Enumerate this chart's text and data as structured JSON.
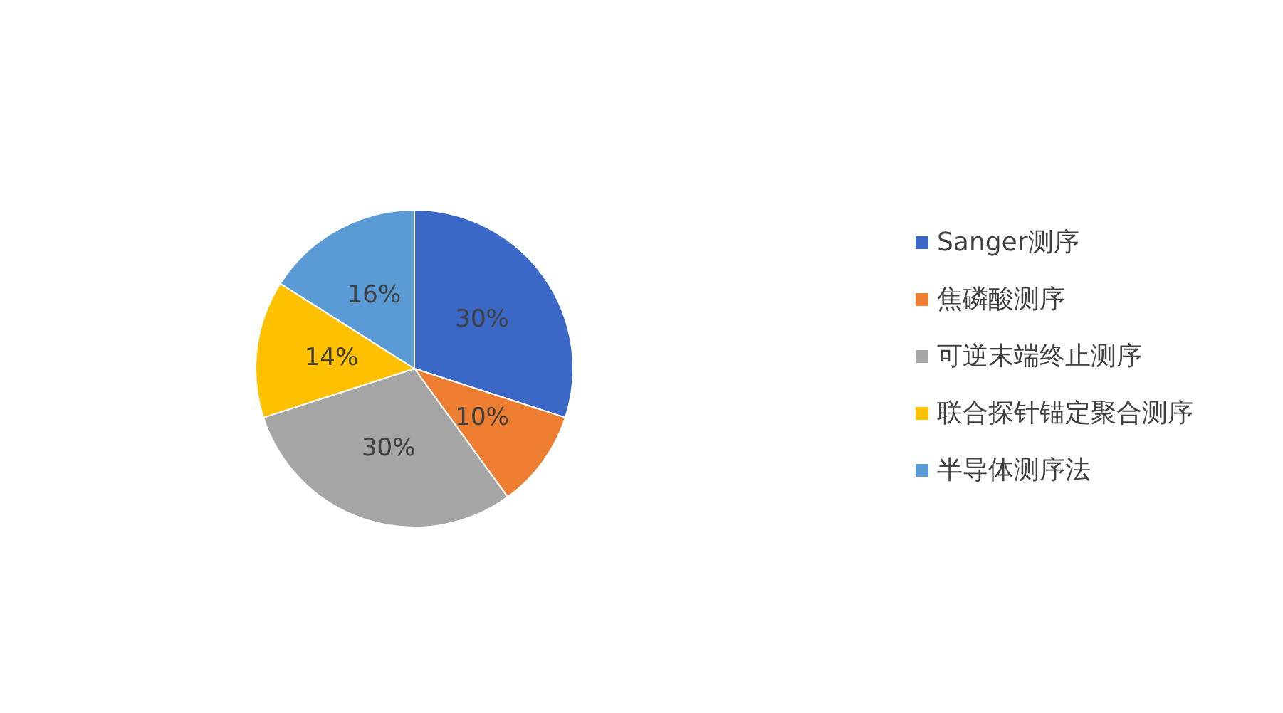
{
  "chart_data": {
    "type": "pie",
    "categories": [
      "Sanger测序",
      "焦磷酸测序",
      "可逆末端终止测序",
      "联合探针锚定聚合测序",
      "半导体测序法"
    ],
    "values": [
      30,
      10,
      30,
      14,
      16
    ],
    "value_labels": [
      "30%",
      "10%",
      "30%",
      "14%",
      "16%"
    ],
    "colors": [
      "#3b67c6",
      "#ed7d31",
      "#a5a5a5",
      "#ffc000",
      "#5b9bd5"
    ],
    "legend": "right"
  }
}
